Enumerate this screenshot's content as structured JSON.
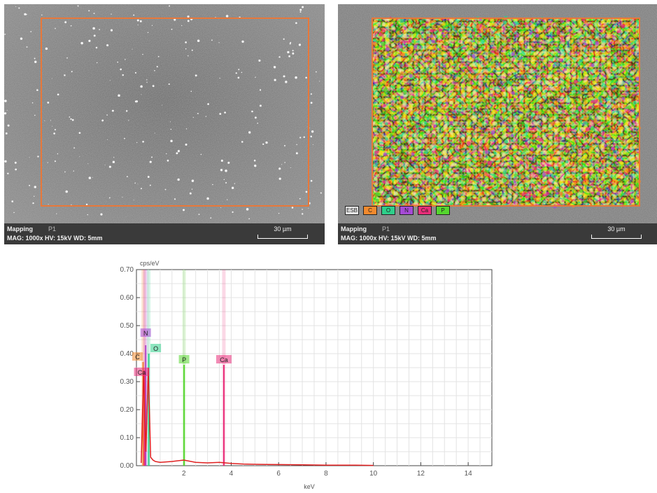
{
  "sem_left": {
    "title": "Mapping",
    "subtitle": "P1",
    "params": "MAG: 1000x  HV: 15kV  WD: 5mm",
    "scale_label": "30 µm"
  },
  "sem_right": {
    "title": "Mapping",
    "subtitle": "P1",
    "params": "MAG: 1000x  HV: 15kV  WD: 5mm",
    "scale_label": "30 µm",
    "legend": [
      {
        "label": "ESB",
        "color": "#e6e6e6"
      },
      {
        "label": "C",
        "color": "#f28a2e"
      },
      {
        "label": "O",
        "color": "#2ecf8a"
      },
      {
        "label": "N",
        "color": "#a64bd6"
      },
      {
        "label": "Ca",
        "color": "#ea2e7a"
      },
      {
        "label": "P",
        "color": "#55d62e"
      }
    ]
  },
  "chart_data": {
    "type": "line",
    "ylabel": "cps/eV",
    "xlabel": "keV",
    "xlim": [
      0,
      15
    ],
    "ylim": [
      0,
      0.7
    ],
    "xticks": [
      2,
      4,
      6,
      8,
      10,
      12,
      14
    ],
    "yticks": [
      0.0,
      0.1,
      0.2,
      0.3,
      0.4,
      0.5,
      0.6,
      0.7
    ],
    "grid": true,
    "peaks": [
      {
        "label": "C",
        "x": 0.28,
        "y": 0.37,
        "color": "#f28a2e"
      },
      {
        "label": "N",
        "x": 0.39,
        "y": 0.43,
        "color": "#a64bd6"
      },
      {
        "label": "O",
        "x": 0.52,
        "y": 0.4,
        "color": "#2ecf8a"
      },
      {
        "label": "Ca",
        "x": 0.34,
        "y": 0.34,
        "color": "#ea2e7a"
      },
      {
        "label": "P",
        "x": 2.01,
        "y": 0.36,
        "color": "#55d62e"
      },
      {
        "label": "Ca",
        "x": 3.69,
        "y": 0.36,
        "color": "#ea2e7a"
      }
    ],
    "spectrum": {
      "color": "#e02020",
      "x": [
        0.2,
        0.3,
        0.4,
        0.5,
        0.6,
        0.7,
        0.8,
        1.0,
        1.5,
        2.0,
        2.5,
        3.0,
        3.5,
        4.0,
        4.5,
        5.0,
        6.0,
        7.0,
        8.0,
        9.0,
        10.0
      ],
      "y": [
        0.01,
        0.33,
        0.05,
        0.35,
        0.03,
        0.02,
        0.015,
        0.012,
        0.015,
        0.02,
        0.012,
        0.01,
        0.012,
        0.008,
        0.006,
        0.005,
        0.004,
        0.003,
        0.002,
        0.002,
        0.001
      ]
    }
  }
}
